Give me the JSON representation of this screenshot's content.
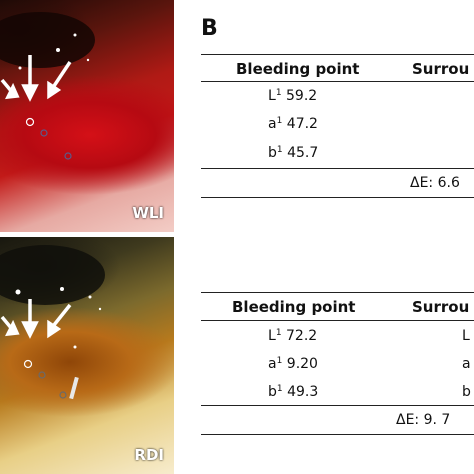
{
  "panel_a": {
    "wli_label": "WLI",
    "rdi_label": "RDI"
  },
  "panel_b": {
    "letter": "B",
    "tables": [
      {
        "header_left": "Bleeding point",
        "header_right": "Surrou",
        "rows": [
          {
            "letter": "L",
            "sup": "1",
            "value": "59.2"
          },
          {
            "letter": "a",
            "sup": "1",
            "value": "47.2"
          },
          {
            "letter": "b",
            "sup": "1",
            "value": "45.7"
          }
        ],
        "delta": "ΔE: 6.6"
      },
      {
        "header_left": "Bleeding point",
        "header_right": "Surrou",
        "rows": [
          {
            "letter": "L",
            "sup": "1",
            "value": "72.2",
            "right": "L"
          },
          {
            "letter": "a",
            "sup": "1",
            "value": "9.20",
            "right": "a"
          },
          {
            "letter": "b",
            "sup": "1",
            "value": "49.3",
            "right": "b"
          }
        ],
        "delta": "ΔE: 9. 7"
      }
    ]
  }
}
